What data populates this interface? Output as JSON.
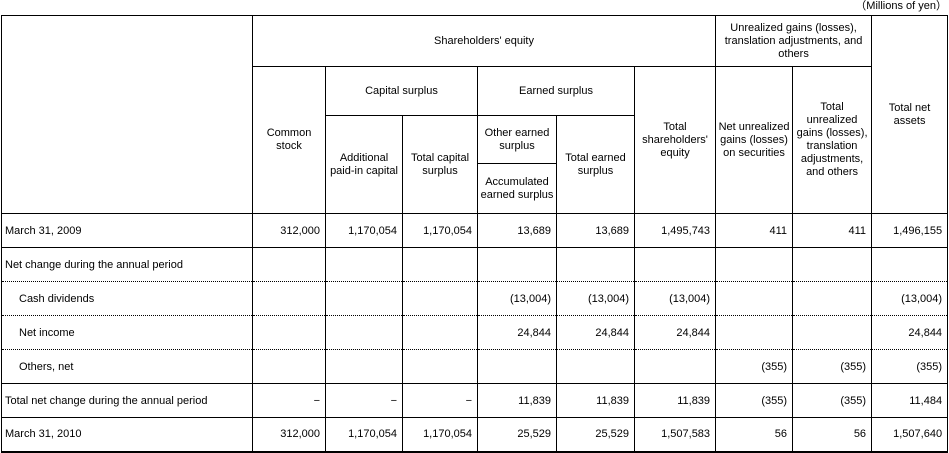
{
  "unit_label": "（Millions of yen）",
  "table": {
    "header": {
      "shareholders_equity_group": "Shareholders' equity",
      "unrealized_group": "Unrealized gains (losses), translation adjustments, and others",
      "total_net_assets": "Total net assets",
      "common_stock": "Common stock",
      "capital_surplus_group": "Capital surplus",
      "earned_surplus_group": "Earned surplus",
      "total_shareholders_equity": "Total shareholders' equity",
      "net_unrealized_gains_on_securities": "Net unrealized gains (losses) on securities",
      "total_unrealized_gains": "Total unrealized gains (losses), translation adjustments, and others",
      "additional_paid_in_capital": "Additional paid-in capital",
      "total_capital_surplus": "Total capital surplus",
      "other_earned_surplus": "Other earned surplus",
      "total_earned_surplus": "Total earned surplus",
      "accumulated_earned_surplus": "Accumulated earned surplus"
    },
    "rows": [
      {
        "label": "March 31, 2009",
        "indent": false,
        "divider": "solid",
        "values": [
          "312,000",
          "1,170,054",
          "1,170,054",
          "13,689",
          "13,689",
          "1,495,743",
          "411",
          "411",
          "1,496,155"
        ]
      },
      {
        "label": "Net change during the annual period",
        "indent": false,
        "divider": "dotted",
        "values": [
          "",
          "",
          "",
          "",
          "",
          "",
          "",
          "",
          ""
        ]
      },
      {
        "label": "Cash dividends",
        "indent": true,
        "divider": "dotted",
        "values": [
          "",
          "",
          "",
          "(13,004)",
          "(13,004)",
          "(13,004)",
          "",
          "",
          "(13,004)"
        ]
      },
      {
        "label": "Net income",
        "indent": true,
        "divider": "dotted",
        "values": [
          "",
          "",
          "",
          "24,844",
          "24,844",
          "24,844",
          "",
          "",
          "24,844"
        ]
      },
      {
        "label": "Others, net",
        "indent": true,
        "divider": "solid",
        "values": [
          "",
          "",
          "",
          "",
          "",
          "",
          "(355)",
          "(355)",
          "(355)"
        ]
      },
      {
        "label": "Total net change during the annual period",
        "indent": false,
        "divider": "solid",
        "values": [
          "−",
          "−",
          "−",
          "11,839",
          "11,839",
          "11,839",
          "(355)",
          "(355)",
          "11,484"
        ]
      },
      {
        "label": "March 31, 2010",
        "indent": false,
        "divider": "solid",
        "values": [
          "312,000",
          "1,170,054",
          "1,170,054",
          "25,529",
          "25,529",
          "1,507,583",
          "56",
          "56",
          "1,507,640"
        ]
      }
    ]
  }
}
